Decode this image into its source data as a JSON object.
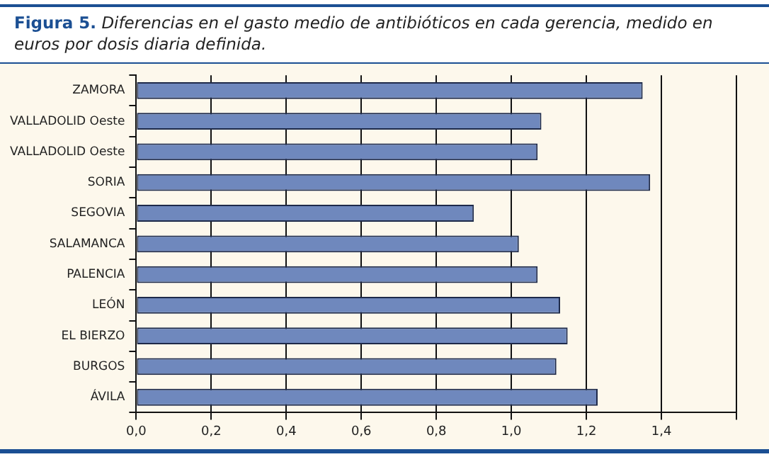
{
  "chart_data": {
    "type": "bar",
    "orientation": "horizontal",
    "title": "Figura 5.",
    "subtitle": "Diferencias en el gasto medio de antibióticos en cada gerencia, medido en euros por dosis diaria definida.",
    "categories": [
      "ZAMORA",
      "VALLADOLID Oeste",
      "VALLADOLID Oeste",
      "SORIA",
      "SEGOVIA",
      "SALAMANCA",
      "PALENCIA",
      "LEÓN",
      "EL BIERZO",
      "BURGOS",
      "ÁVILA"
    ],
    "values": [
      1.35,
      1.08,
      1.07,
      1.37,
      0.9,
      1.02,
      1.07,
      1.13,
      1.15,
      1.12,
      1.23
    ],
    "color": "#6f88bd",
    "xlim": [
      0,
      1.6
    ],
    "xticks": [
      {
        "value": 0,
        "label": "0,0"
      },
      {
        "value": 0.2,
        "label": "0,2"
      },
      {
        "value": 0.4,
        "label": "0,4"
      },
      {
        "value": 0.6,
        "label": "0,6"
      },
      {
        "value": 0.8,
        "label": "0,8"
      },
      {
        "value": 1,
        "label": "1,0"
      },
      {
        "value": 1.2,
        "label": "1,2"
      },
      {
        "value": 1.4,
        "label": "1,4"
      },
      {
        "value": 1.6,
        "label": null
      }
    ],
    "grid": "x"
  }
}
